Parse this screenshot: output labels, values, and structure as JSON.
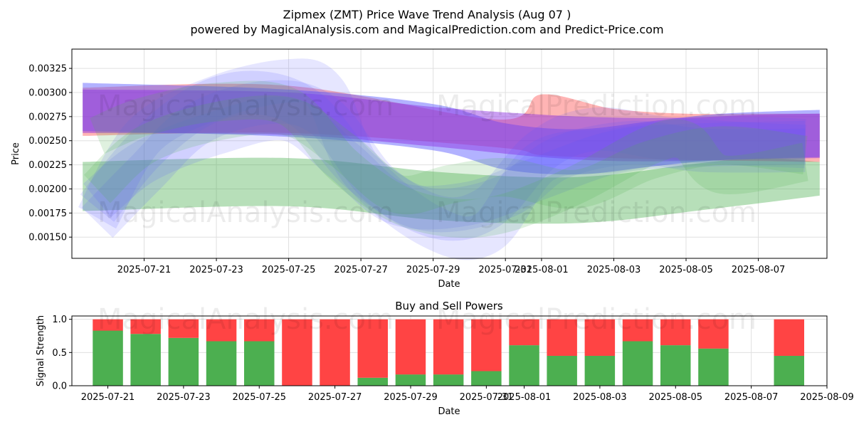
{
  "title_line1": "Zipmex (ZMT) Price Wave Trend Analysis (Aug 07 )",
  "title_line2": "powered by MagicalAnalysis.com and MagicalPrediction.com and Predict-Price.com",
  "watermarks": [
    "MagicalAnalysis.com",
    "MagicalPrediction.com"
  ],
  "colors": {
    "green": "#4caf50",
    "red": "#ff4444",
    "blue": "#5555ff",
    "purple": "#8a2be2",
    "grid": "#e0e0e0"
  },
  "chart_data": [
    {
      "type": "area",
      "title": "",
      "xlabel": "Date",
      "ylabel": "Price",
      "ylim": [
        0.00128,
        0.00345
      ],
      "xlim_days": [
        -2.0,
        18.9
      ],
      "x_ticks": [
        "2025-07-21",
        "2025-07-23",
        "2025-07-25",
        "2025-07-27",
        "2025-07-29",
        "2025-07-31",
        "2025-08-01",
        "2025-08-03",
        "2025-08-05",
        "2025-08-07"
      ],
      "x_tick_days": [
        0,
        2,
        4,
        6,
        8,
        10,
        11,
        13,
        15,
        17
      ],
      "y_ticks": [
        "0.00150",
        "0.00175",
        "0.00200",
        "0.00225",
        "0.00250",
        "0.00275",
        "0.00300",
        "0.00325"
      ],
      "y_tick_values": [
        0.0015,
        0.00175,
        0.002,
        0.00225,
        0.0025,
        0.00275,
        0.003,
        0.00325
      ],
      "grid": true,
      "bands": [
        {
          "name": "green-band",
          "color": "green",
          "opacity": 0.4,
          "x": [
            -1.7,
            4,
            8,
            11,
            13,
            15,
            17,
            18.7
          ],
          "lower": [
            0.00177,
            0.00182,
            0.00168,
            0.00164,
            0.00167,
            0.00176,
            0.00185,
            0.00193
          ],
          "upper": [
            0.00228,
            0.00232,
            0.00218,
            0.00212,
            0.00215,
            0.00225,
            0.00232,
            0.00228
          ]
        },
        {
          "name": "red-band",
          "color": "red",
          "opacity": 0.4,
          "x": [
            -1.7,
            4,
            9.8,
            11,
            13,
            15,
            17,
            18.7
          ],
          "lower": [
            0.00255,
            0.00258,
            0.00243,
            0.00235,
            0.00232,
            0.0023,
            0.00229,
            0.00228
          ],
          "upper": [
            0.00305,
            0.00307,
            0.00272,
            0.00298,
            0.00283,
            0.00278,
            0.00278,
            0.00278
          ]
        },
        {
          "name": "blue-band-1",
          "color": "blue",
          "opacity": 0.45,
          "x": [
            -1.7,
            4,
            8,
            10,
            12,
            14,
            16,
            18.7
          ],
          "lower": [
            0.0026,
            0.00254,
            0.0024,
            0.0022,
            0.00215,
            0.00223,
            0.0023,
            0.00233
          ],
          "upper": [
            0.0031,
            0.00303,
            0.00288,
            0.00268,
            0.00262,
            0.0027,
            0.00278,
            0.00282
          ]
        },
        {
          "name": "purple-band",
          "color": "purple",
          "opacity": 0.45,
          "x": [
            -1.7,
            4,
            8,
            11,
            13,
            15,
            17,
            18.7
          ],
          "lower": [
            0.00258,
            0.00256,
            0.00244,
            0.00233,
            0.00229,
            0.00229,
            0.00231,
            0.00232
          ],
          "upper": [
            0.00303,
            0.003,
            0.00285,
            0.00277,
            0.00274,
            0.00274,
            0.00277,
            0.00278
          ]
        }
      ],
      "ribbons": [
        {
          "name": "blue-ribbon-1",
          "color": "blue",
          "opacity": 0.15,
          "width": 0.00045,
          "x": [
            -1.3,
            0,
            2,
            4,
            5,
            6,
            8,
            9.5,
            11,
            13,
            15,
            17,
            18.3
          ],
          "y": [
            0.0017,
            0.00255,
            0.00295,
            0.00312,
            0.003,
            0.0022,
            0.0016,
            0.00155,
            0.00228,
            0.0024,
            0.0025,
            0.00252,
            0.0025
          ]
        },
        {
          "name": "blue-ribbon-2",
          "color": "blue",
          "opacity": 0.15,
          "width": 0.00045,
          "x": [
            -1.3,
            0,
            1.5,
            3,
            4.5,
            6,
            8,
            9.5,
            11,
            12.5,
            14.5,
            17,
            18.3
          ],
          "y": [
            0.0018,
            0.0024,
            0.00285,
            0.003,
            0.00282,
            0.00218,
            0.00172,
            0.0018,
            0.0024,
            0.00262,
            0.00252,
            0.00246,
            0.00244
          ]
        },
        {
          "name": "blue-ribbon-3",
          "color": "blue",
          "opacity": 0.15,
          "width": 0.00045,
          "x": [
            -1.3,
            0,
            1.5,
            3.5,
            5,
            6.5,
            8,
            10,
            11.5,
            13.5,
            15.5,
            18.3
          ],
          "y": [
            0.00165,
            0.00215,
            0.00268,
            0.0029,
            0.00275,
            0.00205,
            0.00178,
            0.00192,
            0.00232,
            0.00248,
            0.0024,
            0.0024
          ]
        },
        {
          "name": "blue-ribbon-4",
          "color": "blue",
          "opacity": 0.15,
          "width": 0.00045,
          "x": [
            -1.3,
            0,
            2,
            4,
            5.5,
            7,
            9,
            11,
            13,
            15,
            18.3
          ],
          "y": [
            0.00188,
            0.00228,
            0.00258,
            0.00272,
            0.0023,
            0.00185,
            0.00185,
            0.00212,
            0.00238,
            0.00245,
            0.00248
          ]
        },
        {
          "name": "teal-ribbon-1",
          "color": "green",
          "opacity": 0.18,
          "width": 0.0004,
          "x": [
            -1.3,
            0,
            2,
            4,
            5.5,
            7,
            8.5,
            10,
            12,
            14,
            15,
            16,
            18.3
          ],
          "y": [
            0.00255,
            0.00275,
            0.0029,
            0.00285,
            0.00225,
            0.00185,
            0.0017,
            0.00175,
            0.00205,
            0.00245,
            0.0025,
            0.00215,
            0.00228
          ]
        },
        {
          "name": "teal-ribbon-2",
          "color": "green",
          "opacity": 0.18,
          "width": 0.0004,
          "x": [
            -1.3,
            0,
            2,
            4,
            5.5,
            7,
            8.5,
            10,
            12,
            14,
            16,
            18.3
          ],
          "y": [
            0.002,
            0.00245,
            0.0027,
            0.00275,
            0.0024,
            0.00195,
            0.00205,
            0.00212,
            0.002,
            0.0023,
            0.00245,
            0.00235
          ]
        }
      ]
    },
    {
      "type": "bar",
      "title": "Buy and Sell Powers",
      "xlabel": "Date",
      "ylabel": "Signal Strength",
      "ylim": [
        0,
        1.05
      ],
      "xlim_days": [
        -0.95,
        19.0
      ],
      "x_ticks": [
        "2025-07-21",
        "2025-07-23",
        "2025-07-25",
        "2025-07-27",
        "2025-07-29",
        "2025-07-31",
        "2025-08-01",
        "2025-08-03",
        "2025-08-05",
        "2025-08-07",
        "2025-08-09"
      ],
      "x_tick_days": [
        0,
        2,
        4,
        6,
        8,
        10,
        11,
        13,
        15,
        17,
        19
      ],
      "y_ticks": [
        "0.0",
        "0.5",
        "1.0"
      ],
      "y_tick_values": [
        0,
        0.5,
        1.0
      ],
      "grid": true,
      "bar_days": [
        0,
        1,
        2,
        3,
        4,
        5,
        6,
        7,
        8,
        9,
        10,
        11,
        12,
        13,
        14,
        15,
        16,
        18
      ],
      "series": [
        {
          "name": "Buy",
          "color": "green",
          "values": [
            0.83,
            0.78,
            0.72,
            0.67,
            0.67,
            0.0,
            0.0,
            0.12,
            0.17,
            0.17,
            0.22,
            0.61,
            0.45,
            0.45,
            0.67,
            0.61,
            0.56,
            0.45
          ]
        },
        {
          "name": "Sell",
          "color": "red",
          "values": [
            0.17,
            0.22,
            0.28,
            0.33,
            0.33,
            1.0,
            1.0,
            0.88,
            0.83,
            0.83,
            0.78,
            0.39,
            0.55,
            0.55,
            0.33,
            0.39,
            0.44,
            0.55
          ]
        }
      ]
    }
  ]
}
